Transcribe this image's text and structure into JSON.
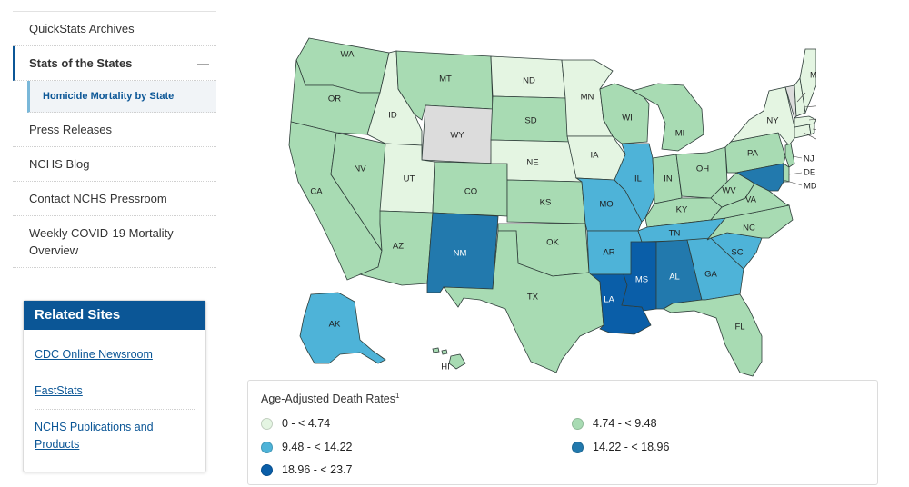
{
  "nav": {
    "items": [
      {
        "label": "QuickStats Archives"
      },
      {
        "label": "Stats of the States",
        "active": true
      },
      {
        "label": "Homicide Mortality by State",
        "sub": true
      },
      {
        "label": "Press Releases"
      },
      {
        "label": "NCHS Blog"
      },
      {
        "label": "Contact NCHS Pressroom"
      },
      {
        "label": "Weekly COVID-19 Mortality Overview"
      }
    ],
    "collapse_symbol": "—"
  },
  "related_sites": {
    "title": "Related Sites",
    "links": [
      "CDC Online Newsroom",
      "FastStats",
      "NCHS Publications and Products"
    ]
  },
  "legend": {
    "title": "Age-Adjusted Death Rates",
    "footnote_marker": "1",
    "categories": [
      {
        "label": "0 - < 4.74",
        "color": "#e4f5e2"
      },
      {
        "label": "4.74 - < 9.48",
        "color": "#a8dbb3"
      },
      {
        "label": "9.48 - < 14.22",
        "color": "#4eb3d8"
      },
      {
        "label": "14.22 - < 18.96",
        "color": "#2279ad"
      },
      {
        "label": "18.96 - < 23.7",
        "color": "#0a5ea8"
      },
      {
        "label": "",
        "color": "#dcdcdc"
      }
    ]
  },
  "map": {
    "states": {
      "WA": 1,
      "OR": 1,
      "CA": 1,
      "NV": 1,
      "ID": 0,
      "MT": 1,
      "WY": 5,
      "UT": 0,
      "AZ": 1,
      "CO": 1,
      "NM": 3,
      "ND": 0,
      "SD": 1,
      "NE": 0,
      "KS": 1,
      "OK": 1,
      "TX": 1,
      "MN": 0,
      "IA": 0,
      "MO": 2,
      "AR": 2,
      "LA": 4,
      "WI": 1,
      "IL": 2,
      "MI": 1,
      "IN": 1,
      "OH": 1,
      "KY": 1,
      "TN": 2,
      "MS": 4,
      "AL": 3,
      "GA": 2,
      "FL": 1,
      "SC": 2,
      "NC": 1,
      "VA": 1,
      "WV": 1,
      "PA": 1,
      "NY": 0,
      "VT": 5,
      "NH": 0,
      "ME": 0,
      "MA": 0,
      "RI": 0,
      "CT": 0,
      "NJ": 1,
      "DE": 1,
      "MD": 3,
      "AK": 2,
      "HI": 1
    }
  }
}
